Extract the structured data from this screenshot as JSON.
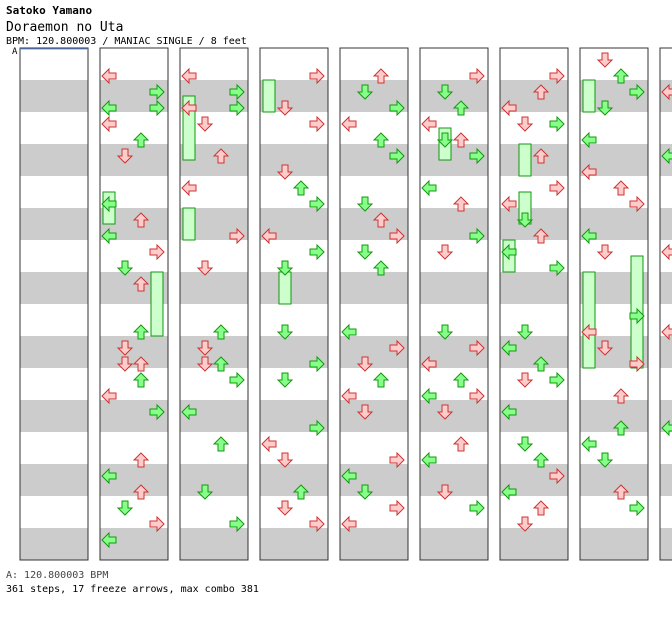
{
  "header": {
    "artist": "Satoko Yamano",
    "song": "Doraemon no Uta",
    "meta": "BPM: 120.800003 / MANIAC SINGLE / 8 feet"
  },
  "bpm_marker": "A",
  "footer": {
    "bpm": "A: 120.800003 BPM",
    "stats": "361 steps, 17 freeze arrows, max combo 381"
  },
  "colors": {
    "stripe_gray": "#cccccc",
    "stripe_white": "#ffffff",
    "border": "#333333",
    "green_fill": "#88ff88",
    "green_stroke": "#119911",
    "red_fill": "#ffcccc",
    "red_stroke": "#cc3333",
    "freeze_fill": "#ccffcc"
  },
  "step_chart": {
    "columns": 8,
    "beats_per_column": 16,
    "lanes": [
      "left",
      "down",
      "up",
      "right"
    ],
    "freeze_arrows": 17,
    "notes": [
      [
        [
          2,
          0,
          "r"
        ],
        [
          3,
          3,
          "g"
        ],
        [
          4,
          3,
          "g"
        ],
        [
          4,
          0,
          "g"
        ],
        [
          5,
          0,
          "r"
        ],
        [
          6,
          2,
          "g"
        ],
        [
          7,
          1,
          "r"
        ],
        [
          10,
          0,
          "g"
        ],
        [
          11,
          2,
          "r"
        ],
        [
          12,
          0,
          "g"
        ],
        [
          13,
          3,
          "r"
        ],
        [
          14,
          1,
          "g"
        ],
        [
          15,
          2,
          "r"
        ]
      ],
      [
        [
          2,
          0,
          "r"
        ],
        [
          3,
          3,
          "g"
        ],
        [
          4,
          0,
          "r"
        ],
        [
          4,
          3,
          "g"
        ],
        [
          5,
          1,
          "r"
        ],
        [
          7,
          2,
          "r"
        ],
        [
          9,
          0,
          "r"
        ],
        [
          12,
          3,
          "r"
        ],
        [
          14,
          1,
          "r"
        ]
      ],
      [
        [
          2,
          3,
          "r"
        ],
        [
          4,
          1,
          "r"
        ],
        [
          5,
          3,
          "r"
        ],
        [
          8,
          1,
          "r"
        ],
        [
          9,
          2,
          "g"
        ],
        [
          10,
          3,
          "g"
        ],
        [
          12,
          0,
          "r"
        ],
        [
          13,
          3,
          "g"
        ],
        [
          14,
          1,
          "g"
        ]
      ],
      [
        [
          2,
          2,
          "r"
        ],
        [
          3,
          1,
          "g"
        ],
        [
          4,
          3,
          "g"
        ],
        [
          5,
          0,
          "r"
        ],
        [
          6,
          2,
          "g"
        ],
        [
          7,
          3,
          "g"
        ],
        [
          10,
          1,
          "g"
        ],
        [
          11,
          2,
          "r"
        ],
        [
          12,
          3,
          "r"
        ],
        [
          13,
          1,
          "g"
        ],
        [
          14,
          2,
          "g"
        ]
      ],
      [
        [
          2,
          3,
          "r"
        ],
        [
          3,
          1,
          "g"
        ],
        [
          4,
          2,
          "g"
        ],
        [
          5,
          0,
          "r"
        ],
        [
          6,
          1,
          "g"
        ],
        [
          6,
          2,
          "r"
        ],
        [
          7,
          3,
          "g"
        ],
        [
          9,
          0,
          "g"
        ],
        [
          10,
          2,
          "r"
        ],
        [
          12,
          3,
          "g"
        ],
        [
          13,
          1,
          "r"
        ]
      ],
      [
        [
          2,
          3,
          "r"
        ],
        [
          3,
          2,
          "r"
        ],
        [
          4,
          0,
          "r"
        ],
        [
          5,
          1,
          "r"
        ],
        [
          5,
          3,
          "g"
        ],
        [
          7,
          2,
          "r"
        ],
        [
          9,
          3,
          "r"
        ],
        [
          10,
          0,
          "r"
        ],
        [
          11,
          1,
          "g"
        ],
        [
          12,
          2,
          "r"
        ],
        [
          13,
          0,
          "g"
        ],
        [
          14,
          3,
          "g"
        ]
      ],
      [
        [
          1,
          1,
          "r"
        ],
        [
          2,
          2,
          "g"
        ],
        [
          3,
          3,
          "g"
        ],
        [
          4,
          1,
          "g"
        ],
        [
          6,
          0,
          "g"
        ],
        [
          8,
          0,
          "r"
        ],
        [
          9,
          2,
          "r"
        ],
        [
          10,
          3,
          "r"
        ],
        [
          12,
          0,
          "g"
        ],
        [
          13,
          1,
          "r"
        ]
      ],
      [
        [
          1,
          1,
          "r"
        ],
        [
          2,
          2,
          "g"
        ],
        [
          3,
          0,
          "r"
        ],
        [
          4,
          1,
          "r"
        ],
        [
          5,
          3,
          "g"
        ],
        [
          7,
          0,
          "g"
        ],
        [
          8,
          2,
          "r"
        ],
        [
          9,
          1,
          "r"
        ],
        [
          11,
          3,
          "g"
        ],
        [
          13,
          0,
          "r"
        ]
      ]
    ],
    "freezes": [
      [
        [
          15,
          3,
          4,
          "g"
        ],
        [
          10,
          0,
          2,
          "g"
        ]
      ],
      [
        [
          4,
          0,
          4,
          "g"
        ],
        [
          11,
          0,
          2,
          "r"
        ]
      ],
      [
        [
          3,
          0,
          2,
          "g"
        ],
        [
          15,
          1,
          2,
          "g"
        ]
      ],
      [],
      [
        [
          6,
          1,
          2,
          "g"
        ]
      ],
      [
        [
          10,
          1,
          2,
          "g"
        ],
        [
          7,
          1,
          2,
          "g"
        ],
        [
          13,
          0,
          2,
          "g"
        ]
      ],
      [
        [
          3,
          0,
          2,
          "g"
        ],
        [
          15,
          0,
          6,
          "g"
        ],
        [
          14,
          3,
          7,
          "g"
        ]
      ],
      []
    ]
  }
}
